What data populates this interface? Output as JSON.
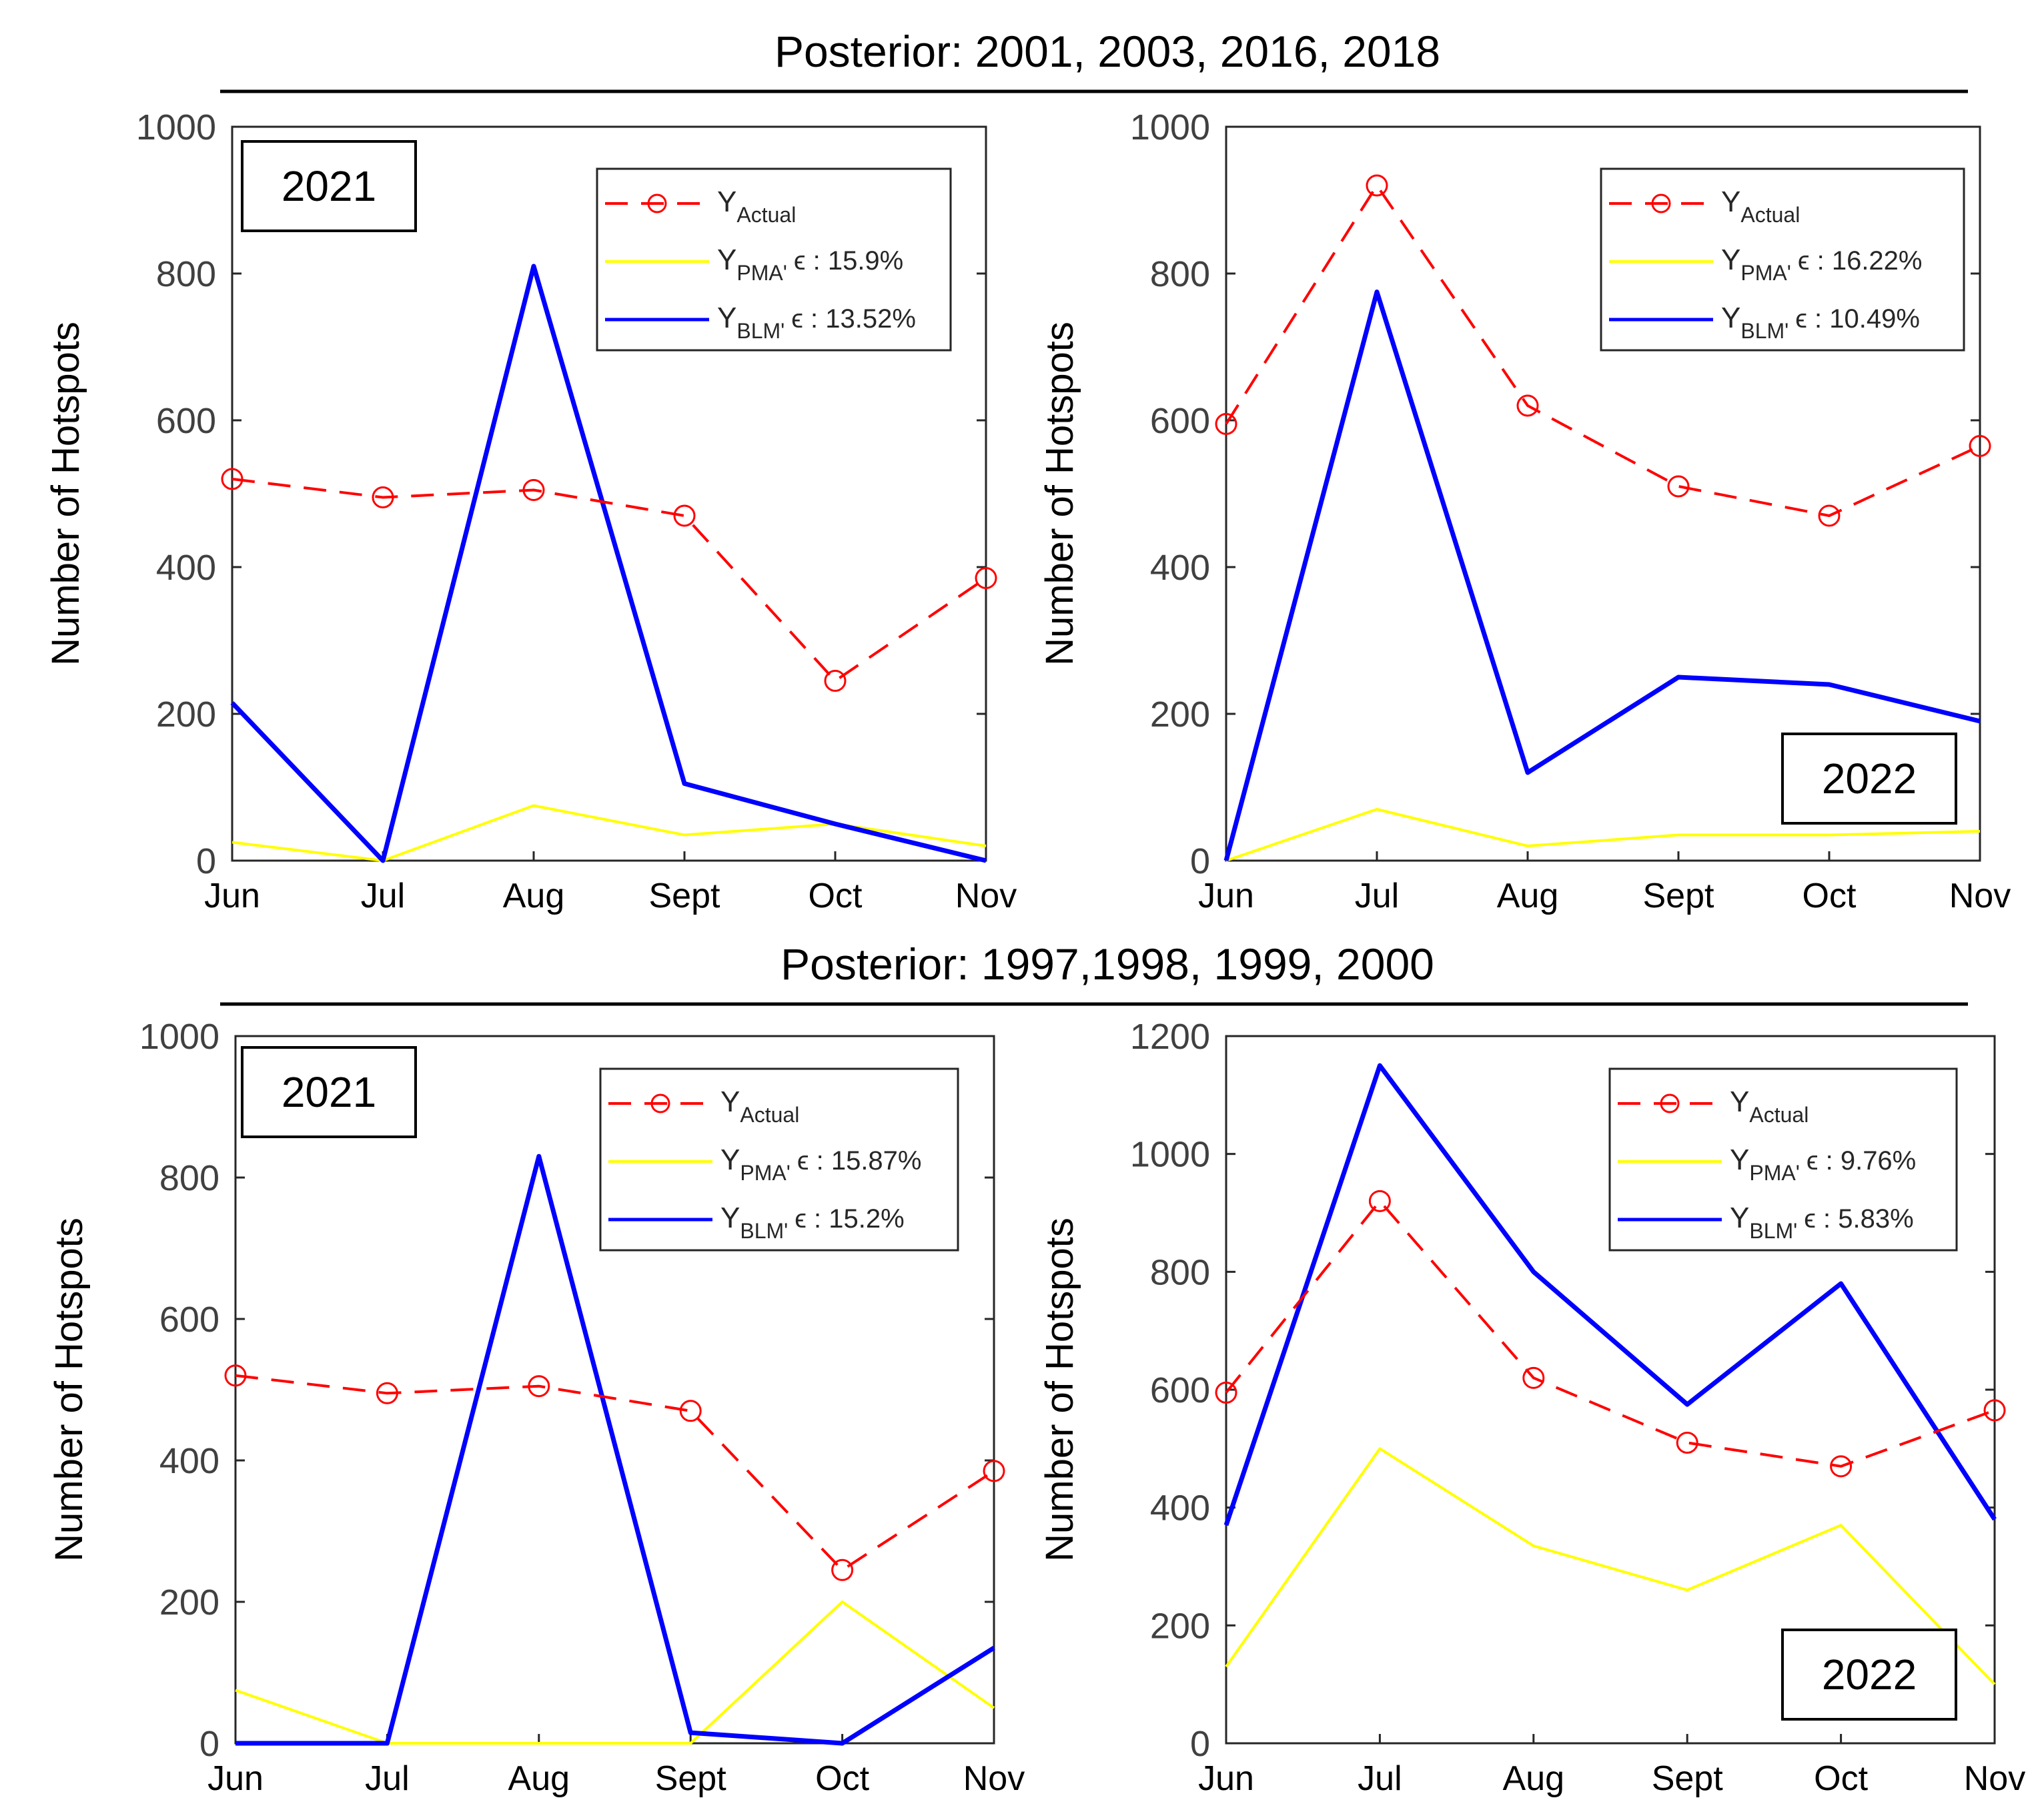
{
  "figure": {
    "sections": [
      {
        "title": "Posterior: 2001, 2003, 2016, 2018"
      },
      {
        "title": "Posterior: 1997,1998, 1999, 2000"
      }
    ]
  },
  "colors": {
    "actual": "#ff0000",
    "pma": "#ffff00",
    "blm": "#0000ff"
  },
  "legend_labels": {
    "actual_main": "Y",
    "actual_sub": "Actual",
    "pma_main": "Y",
    "pma_sub": "PMA'",
    "blm_main": "Y",
    "blm_sub": "BLM'"
  },
  "chart_data": [
    {
      "type": "line",
      "year_label": "2021",
      "ylabel": "Number of Hotspots",
      "categories": [
        "Jun",
        "Jul",
        "Aug",
        "Sept",
        "Oct",
        "Nov"
      ],
      "ylim": [
        0,
        1000
      ],
      "yticks": [
        "0",
        "200",
        "400",
        "600",
        "800",
        "1000"
      ],
      "legend": "top-right",
      "series": [
        {
          "key": "actual",
          "values": [
            520,
            495,
            505,
            470,
            245,
            385
          ],
          "error": ""
        },
        {
          "key": "pma",
          "values": [
            25,
            0,
            75,
            35,
            50,
            20
          ],
          "error": "ϵ : 15.9%"
        },
        {
          "key": "blm",
          "values": [
            215,
            0,
            810,
            105,
            50,
            0
          ],
          "error": "ϵ : 13.52%"
        }
      ]
    },
    {
      "type": "line",
      "year_label": "2022",
      "ylabel": "Number of Hotspots",
      "categories": [
        "Jun",
        "Jul",
        "Aug",
        "Sept",
        "Oct",
        "Nov"
      ],
      "ylim": [
        0,
        1000
      ],
      "yticks": [
        "0",
        "200",
        "400",
        "600",
        "800",
        "1000"
      ],
      "legend": "top-right",
      "series": [
        {
          "key": "actual",
          "values": [
            595,
            920,
            620,
            510,
            470,
            565
          ],
          "error": ""
        },
        {
          "key": "pma",
          "values": [
            0,
            70,
            20,
            35,
            35,
            40
          ],
          "error": "ϵ : 16.22%"
        },
        {
          "key": "blm",
          "values": [
            0,
            775,
            120,
            250,
            240,
            190
          ],
          "error": "ϵ : 10.49%"
        }
      ]
    },
    {
      "type": "line",
      "year_label": "2021",
      "ylabel": "Number of Hotspots",
      "categories": [
        "Jun",
        "Jul",
        "Aug",
        "Sept",
        "Oct",
        "Nov"
      ],
      "ylim": [
        0,
        1000
      ],
      "yticks": [
        "0",
        "200",
        "400",
        "600",
        "800",
        "1000"
      ],
      "legend": "top-right",
      "series": [
        {
          "key": "actual",
          "values": [
            520,
            495,
            505,
            470,
            245,
            385
          ],
          "error": ""
        },
        {
          "key": "pma",
          "values": [
            75,
            0,
            0,
            0,
            200,
            50
          ],
          "error": "ϵ : 15.87%"
        },
        {
          "key": "blm",
          "values": [
            0,
            0,
            830,
            15,
            0,
            135
          ],
          "error": "ϵ : 15.2%"
        }
      ]
    },
    {
      "type": "line",
      "year_label": "2022",
      "ylabel": "Number of Hotspots",
      "categories": [
        "Jun",
        "Jul",
        "Aug",
        "Sept",
        "Oct",
        "Nov"
      ],
      "ylim": [
        0,
        1200
      ],
      "yticks": [
        "0",
        "200",
        "400",
        "600",
        "800",
        "1000",
        "1200"
      ],
      "legend": "top-right",
      "series": [
        {
          "key": "actual",
          "values": [
            595,
            920,
            620,
            510,
            470,
            565
          ],
          "error": ""
        },
        {
          "key": "pma",
          "values": [
            130,
            500,
            335,
            260,
            370,
            100
          ],
          "error": "ϵ : 9.76%"
        },
        {
          "key": "blm",
          "values": [
            370,
            1150,
            800,
            575,
            780,
            380
          ],
          "error": "ϵ : 5.83%"
        }
      ]
    }
  ]
}
